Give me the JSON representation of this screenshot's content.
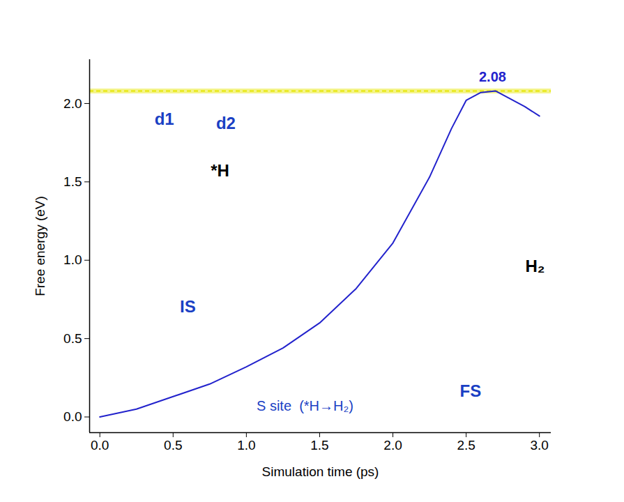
{
  "chart_data": {
    "type": "line",
    "x_label": "Simulation time (ps)",
    "y_label": "Free energy (eV)",
    "x": [
      0.0,
      0.25,
      0.5,
      0.75,
      1.0,
      1.25,
      1.5,
      1.75,
      2.0,
      2.25,
      2.4,
      2.5,
      2.6,
      2.7,
      2.8,
      2.9,
      3.0
    ],
    "series": [
      {
        "name": "S site (*H→H₂)",
        "color": "#2222cc",
        "values": [
          0.0,
          0.05,
          0.13,
          0.21,
          0.32,
          0.44,
          0.6,
          0.82,
          1.11,
          1.53,
          1.84,
          2.02,
          2.07,
          2.08,
          2.03,
          1.98,
          1.92
        ]
      }
    ],
    "xlim": [
      -0.07,
      3.08
    ],
    "ylim": [
      -0.1,
      2.28
    ],
    "xticks": [
      {
        "value": 0,
        "label": "0.0"
      },
      {
        "value": 0.5,
        "label": "0.5"
      },
      {
        "value": 1,
        "label": "1.0"
      },
      {
        "value": 1.5,
        "label": "1.5"
      },
      {
        "value": 2,
        "label": "2.0"
      },
      {
        "value": 2.5,
        "label": "2.5"
      },
      {
        "value": 3,
        "label": "3.0"
      }
    ],
    "yticks": [
      {
        "value": 0,
        "label": "0.0"
      },
      {
        "value": 0.5,
        "label": "0.5"
      },
      {
        "value": 1,
        "label": "1.0"
      },
      {
        "value": 1.5,
        "label": "1.5"
      },
      {
        "value": 2,
        "label": "2.0"
      }
    ],
    "reference_line": {
      "y": 2.08,
      "color": "#e6e600"
    },
    "annotations": [
      {
        "text": "2.08",
        "x": 2.68,
        "y": 2.17,
        "color": "#2222cc"
      },
      {
        "text": "IS",
        "x": 0.6,
        "y": 0.7,
        "color": "#1a3fc4"
      },
      {
        "text": "FS",
        "x": 2.53,
        "y": 0.165,
        "color": "#1a3fc4"
      },
      {
        "text": "*H",
        "x": 0.82,
        "y": 1.57,
        "color": "#000000"
      },
      {
        "text": "H₂",
        "x": 2.97,
        "y": 0.96,
        "color": "#000000"
      },
      {
        "text": "d1",
        "x": 0.44,
        "y": 1.9,
        "color": "#1a3fc4"
      },
      {
        "text": "d2",
        "x": 0.86,
        "y": 1.87,
        "color": "#1a3fc4"
      }
    ],
    "panel_label": {
      "text": "S site  (*H→H₂)",
      "x": 1.4,
      "y": 0.07,
      "color": "#1a3fc4"
    },
    "grid": false
  }
}
